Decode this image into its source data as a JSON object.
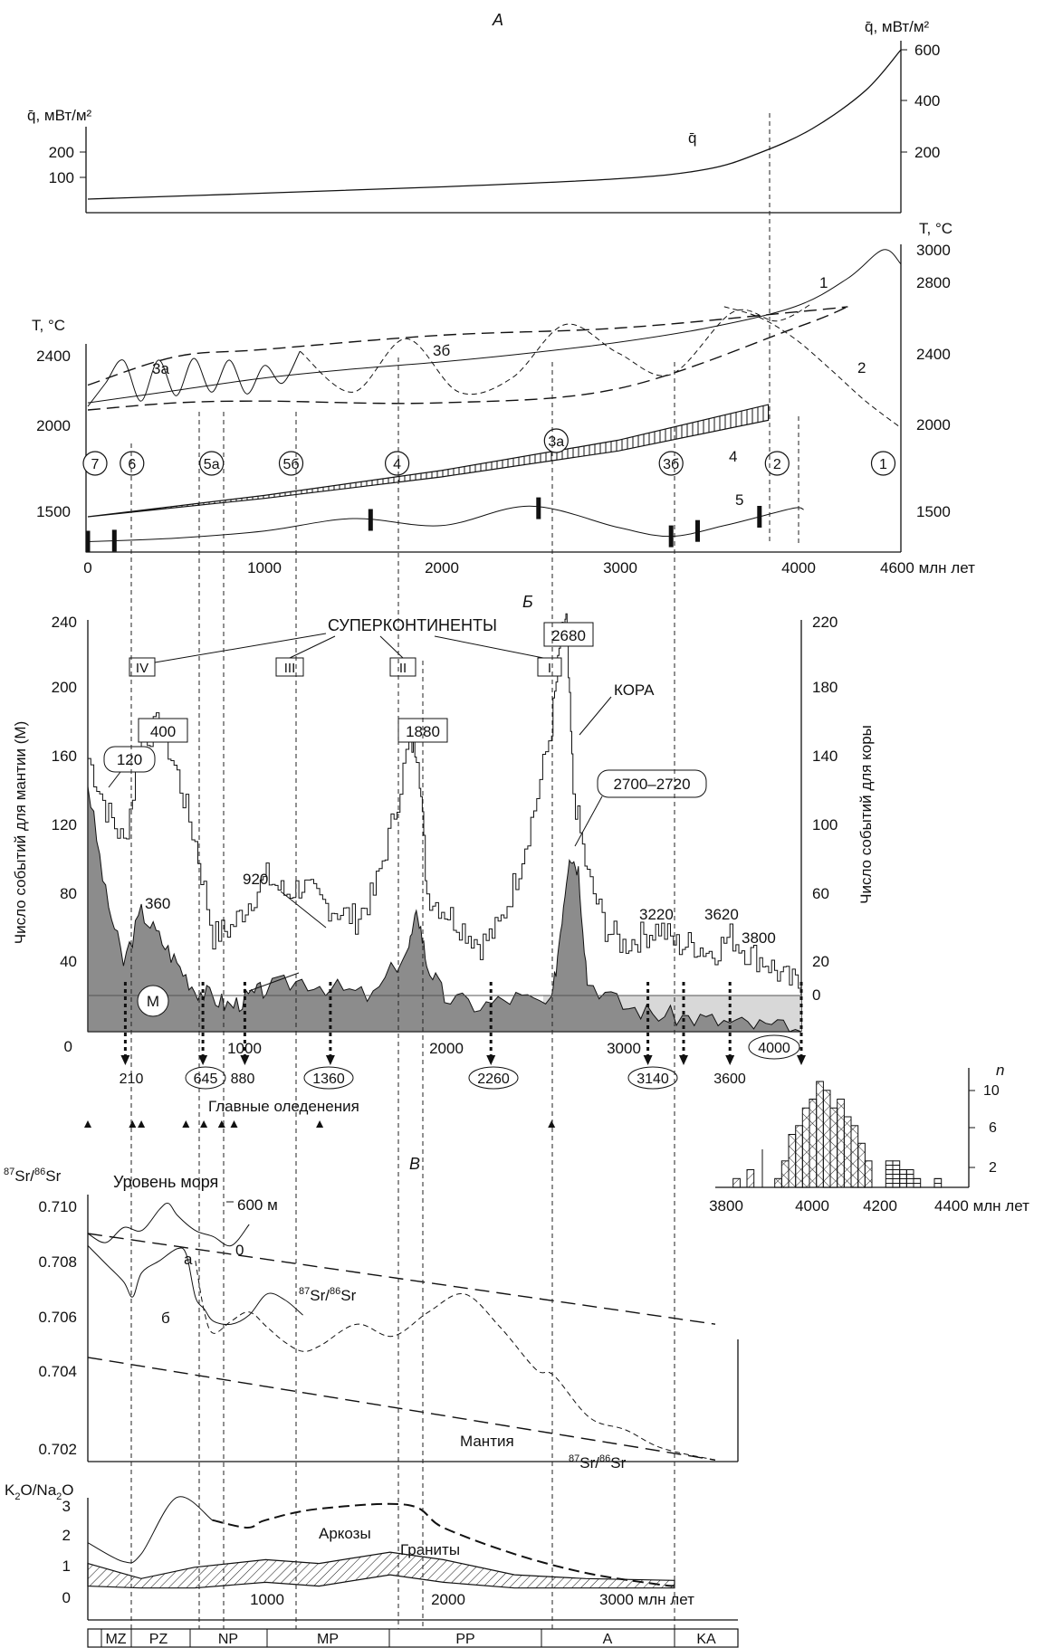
{
  "panel_labels": {
    "a": "А",
    "b": "Б",
    "v": "В"
  },
  "chart_data": [
    {
      "type": "line",
      "panel": "А (верх)",
      "left_axis": {
        "label": "q̄, мВт/м²",
        "ticks": [
          100,
          200
        ]
      },
      "right_axis": {
        "label": "q̄, мВт/м²",
        "ticks": [
          200,
          400,
          600
        ]
      },
      "series": [
        {
          "name": "q̄",
          "x": [
            0,
            1000,
            2000,
            3000,
            3500,
            3800,
            4100,
            4400,
            4600
          ],
          "values": [
            50,
            72,
            95,
            125,
            160,
            220,
            310,
            450,
            600
          ]
        }
      ]
    },
    {
      "type": "line",
      "panel": "А (низ)",
      "left_axis": {
        "label": "T, °C",
        "ticks": [
          1500,
          2000,
          2400
        ]
      },
      "right_axis": {
        "label": "T, °C",
        "ticks": [
          1500,
          2000,
          2400,
          2800,
          3000
        ]
      },
      "x_axis": {
        "ticks": [
          0,
          1000,
          2000,
          3000,
          4000,
          4600
        ],
        "unit": "млн лет"
      },
      "series": [
        {
          "name": "1",
          "x": [
            0,
            500,
            1000,
            1500,
            2000,
            2500,
            3000,
            3500,
            4000,
            4300,
            4500,
            4600
          ],
          "values": [
            2140,
            2210,
            2280,
            2330,
            2370,
            2420,
            2480,
            2560,
            2680,
            2840,
            3000,
            2920
          ]
        },
        {
          "name": "2",
          "x": [
            3600,
            3800,
            4000,
            4200,
            4400,
            4600
          ],
          "values": [
            2680,
            2620,
            2500,
            2330,
            2150,
            2000
          ]
        },
        {
          "name": "3а",
          "x": [
            0,
            100,
            200,
            300,
            400,
            500,
            600,
            700,
            800,
            900,
            1000,
            1100,
            1200
          ],
          "values": [
            2120,
            2250,
            2380,
            2150,
            2380,
            2180,
            2390,
            2200,
            2380,
            2190,
            2350,
            2250,
            2430
          ]
        },
        {
          "name": "3б",
          "x": [
            1200,
            1500,
            1800,
            2100,
            2400,
            2700,
            3000,
            3300,
            3650,
            3900,
            4100
          ],
          "values": [
            2430,
            2200,
            2500,
            2200,
            2280,
            2580,
            2420,
            2300,
            2650,
            2600,
            2700
          ]
        },
        {
          "name": "4",
          "x": [
            0,
            1000,
            2000,
            3000,
            3850
          ],
          "values": [
            1500,
            1620,
            1760,
            1930,
            2130
          ]
        },
        {
          "name": "5",
          "x": [
            0,
            500,
            1000,
            1500,
            2000,
            2500,
            3000,
            3300,
            3600,
            3800,
            4000,
            4050
          ],
          "values": [
            1360,
            1380,
            1420,
            1490,
            1450,
            1560,
            1440,
            1390,
            1450,
            1500,
            1550,
            1540
          ]
        }
      ],
      "envelope": {
        "upper": [
          [
            0,
            2240
          ],
          [
            500,
            2400
          ],
          [
            1000,
            2440
          ],
          [
            2000,
            2520
          ],
          [
            3000,
            2560
          ],
          [
            4000,
            2650
          ],
          [
            4300,
            2680
          ]
        ],
        "lower": [
          [
            0,
            2100
          ],
          [
            500,
            2140
          ],
          [
            1000,
            2150
          ],
          [
            2000,
            2140
          ],
          [
            3000,
            2220
          ],
          [
            4000,
            2560
          ],
          [
            4300,
            2680
          ]
        ]
      },
      "markers": {
        "7": 0,
        "6": 250,
        "5а": 700,
        "5б": 1150,
        "4": 1750,
        "3а": 2650,
        "3б": 3300,
        "2": 3900,
        "1": 4500
      }
    },
    {
      "type": "area",
      "panel": "Б",
      "title": "СУПЕРКОНТИНЕНТЫ",
      "left_axis": {
        "label": "Число событий для мантии (М)",
        "ticks": [
          0,
          40,
          80,
          120,
          160,
          200,
          240
        ]
      },
      "right_axis": {
        "label": "Число событий для коры",
        "ticks": [
          0,
          20,
          60,
          100,
          140,
          180,
          220
        ]
      },
      "x_axis": {
        "ticks": [
          1000,
          2000,
          3000
        ]
      },
      "series": [
        {
          "name": "КОРА",
          "x": [
            0,
            100,
            200,
            300,
            400,
            500,
            600,
            700,
            800,
            900,
            1000,
            1100,
            1200,
            1300,
            1400,
            1500,
            1600,
            1700,
            1800,
            1850,
            1900,
            2000,
            2100,
            2200,
            2300,
            2400,
            2500,
            2600,
            2650,
            2680,
            2720,
            2800,
            2900,
            3000,
            3100,
            3200,
            3300,
            3400,
            3500,
            3600,
            3700,
            3800,
            3900,
            4000
          ],
          "values": [
            140,
            110,
            90,
            150,
            160,
            130,
            90,
            35,
            40,
            55,
            70,
            60,
            65,
            55,
            50,
            45,
            60,
            100,
            150,
            145,
            60,
            50,
            40,
            30,
            40,
            70,
            110,
            160,
            210,
            220,
            120,
            70,
            40,
            30,
            35,
            40,
            30,
            30,
            25,
            35,
            25,
            20,
            10,
            5
          ]
        },
        {
          "name": "М",
          "x": [
            0,
            100,
            200,
            300,
            400,
            500,
            600,
            700,
            800,
            900,
            1000,
            1200,
            1400,
            1600,
            1800,
            1850,
            1900,
            2000,
            2200,
            2400,
            2600,
            2650,
            2700,
            2750,
            2800,
            3000,
            3200,
            3400,
            3600,
            3800,
            4000
          ],
          "values": [
            145,
            80,
            40,
            70,
            55,
            40,
            25,
            20,
            15,
            20,
            25,
            30,
            25,
            20,
            50,
            70,
            40,
            20,
            15,
            20,
            15,
            60,
            105,
            95,
            30,
            15,
            10,
            8,
            5,
            3,
            0
          ]
        }
      ],
      "peaks": [
        "120",
        "400",
        "1880",
        "2680",
        "2700–2720",
        "360",
        "920",
        "3220",
        "3620",
        "3800"
      ],
      "lows": [
        "210",
        "645",
        "880",
        "1360",
        "2260",
        "3140",
        "3600",
        "4000"
      ],
      "supercontinents": [
        "IV",
        "III",
        "II",
        "I"
      ],
      "glaciations_label": "Главные оледенения",
      "glaciations": [
        0,
        250,
        300,
        550,
        650,
        750,
        820,
        1300,
        2600
      ]
    },
    {
      "type": "bar",
      "panel": "гистограмма",
      "ylabel": "n",
      "x_axis": {
        "ticks": [
          3800,
          4000,
          4200,
          4400
        ],
        "unit": "млн лет"
      },
      "yticks": [
        2,
        6,
        10
      ],
      "bins": [
        3820,
        3860,
        3940,
        3960,
        3980,
        4000,
        4020,
        4040,
        4060,
        4080,
        4100,
        4120,
        4140,
        4160,
        4180,
        4200,
        4260,
        4280,
        4300,
        4320,
        4340,
        4400
      ],
      "values": [
        1,
        2,
        1,
        3,
        6,
        7,
        9,
        10,
        12,
        11,
        9,
        10,
        8,
        7,
        5,
        3,
        3,
        3,
        2,
        2,
        1,
        1
      ]
    },
    {
      "type": "line",
      "panel": "В",
      "yaxis_label": "87Sr/86Sr",
      "yticks": [
        "0.702",
        "0.704",
        "0.706",
        "0.708",
        "0.710"
      ],
      "labels": {
        "sea_level": "Уровень моря",
        "sea_600": "600 м",
        "zero": "0",
        "a": "а",
        "b": "б",
        "sr": "87Sr/86Sr",
        "mantle": "Мантия",
        "sr2": "87Sr/86Sr"
      },
      "series": [
        {
          "name": "Уровень моря",
          "x": [
            0,
            100,
            200,
            300,
            400,
            450,
            500,
            600,
            700,
            800,
            900
          ],
          "values": [
            0.7091,
            0.7088,
            0.7093,
            0.7092,
            0.7099,
            0.7101,
            0.7097,
            0.7092,
            0.709,
            0.7087,
            0.7094
          ]
        },
        {
          "name": "а",
          "x": [
            0,
            100,
            200,
            250,
            300,
            400,
            500,
            550,
            600,
            650,
            700,
            800,
            900,
            1000,
            1100,
            1200
          ],
          "values": [
            0.7087,
            0.7081,
            0.7075,
            0.707,
            0.7078,
            0.7082,
            0.7086,
            0.7084,
            0.707,
            0.7066,
            0.7062,
            0.7061,
            0.7064,
            0.7071,
            0.7069,
            0.7064
          ]
        },
        {
          "name": "б",
          "x": [
            600,
            650,
            700,
            800,
            900,
            1000,
            1100,
            1200,
            1300,
            1500,
            1700,
            1900,
            2100,
            2300,
            2500,
            2600,
            2800,
            3000,
            3200,
            3500
          ],
          "values": [
            0.7082,
            0.7065,
            0.7058,
            0.7062,
            0.7065,
            0.706,
            0.7055,
            0.7052,
            0.7054,
            0.7061,
            0.7057,
            0.7065,
            0.7071,
            0.706,
            0.7046,
            0.7044,
            0.703,
            0.7026,
            0.702,
            0.7016
          ]
        }
      ],
      "trend_lines": [
        {
          "x": [
            0,
            3500
          ],
          "values": [
            0.7091,
            0.7061
          ]
        },
        {
          "x": [
            0,
            3500
          ],
          "values": [
            0.705,
            0.7016
          ]
        }
      ]
    },
    {
      "type": "area",
      "panel": "K2O/Na2O",
      "yaxis_label": "K2O/Na2O",
      "yticks": [
        0,
        1,
        2,
        3
      ],
      "x_axis": {
        "ticks": [
          1000,
          2000,
          3000
        ],
        "unit": "млн лет"
      },
      "labels": {
        "arkoses": "Аркозы",
        "granites": "Граниты"
      },
      "series": [
        {
          "name": "Аркозы",
          "x": [
            0,
            200,
            300,
            500,
            700,
            900,
            1000,
            1300,
            1800,
            2000,
            2400,
            2800,
            3200,
            3300
          ],
          "values": [
            2.0,
            1.5,
            1.7,
            3.2,
            2.6,
            2.4,
            2.6,
            2.9,
            3.0,
            2.4,
            1.7,
            1.2,
            0.9,
            0.85
          ]
        },
        {
          "name": "Граниты",
          "x": [
            0,
            300,
            600,
            1000,
            1300,
            1700,
            2000,
            2400,
            2800,
            3300
          ],
          "values": [
            1.3,
            0.9,
            1.2,
            1.4,
            1.3,
            1.6,
            1.4,
            1.0,
            0.9,
            0.85
          ]
        }
      ]
    }
  ],
  "eras": [
    "MZ",
    "PZ",
    "NP",
    "MP",
    "PP",
    "A",
    "KA"
  ]
}
